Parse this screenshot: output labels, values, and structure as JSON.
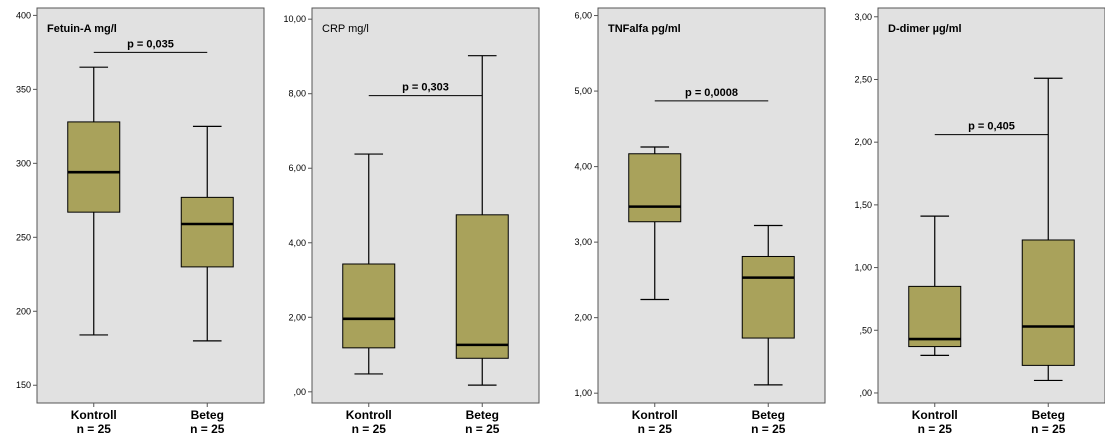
{
  "chart_data": [
    {
      "type": "boxplot",
      "title": "Fetuin-A mg/l",
      "title_bold": true,
      "ylim": [
        138,
        405
      ],
      "yticks": [
        150,
        200,
        250,
        300,
        350,
        400
      ],
      "ytick_labels": [
        "150",
        "200",
        "250",
        "300",
        "350",
        "400"
      ],
      "categories": [
        "Kontroll",
        "Beteg"
      ],
      "category_sublabels": [
        "n = 25",
        "n = 25"
      ],
      "boxes": [
        {
          "min": 184,
          "q1": 267,
          "median": 294,
          "q3": 328,
          "max": 365
        },
        {
          "min": 180,
          "q1": 230,
          "median": 259,
          "q3": 277,
          "max": 325
        }
      ],
      "annotation": {
        "text": "p = 0,035",
        "y": 375
      }
    },
    {
      "type": "boxplot",
      "title": "CRP mg/l",
      "title_bold": false,
      "ylim": [
        -0.3,
        10.3
      ],
      "yticks": [
        0,
        2,
        4,
        6,
        8,
        10
      ],
      "ytick_labels": [
        ",00",
        "2,00",
        "4,00",
        "6,00",
        "8,00",
        "10,00"
      ],
      "categories": [
        "Kontroll",
        "Beteg"
      ],
      "category_sublabels": [
        "n = 25",
        "n = 25"
      ],
      "boxes": [
        {
          "min": 0.48,
          "q1": 1.18,
          "median": 1.96,
          "q3": 3.43,
          "max": 6.38
        },
        {
          "min": 0.18,
          "q1": 0.9,
          "median": 1.26,
          "q3": 4.75,
          "max": 9.02
        }
      ],
      "annotation": {
        "text": "p = 0,303",
        "y": 7.95
      }
    },
    {
      "type": "boxplot",
      "title": "TNFalfa pg/ml",
      "title_bold": true,
      "ylim": [
        0.87,
        6.1
      ],
      "yticks": [
        1,
        2,
        3,
        4,
        5,
        6
      ],
      "ytick_labels": [
        "1,00",
        "2,00",
        "3,00",
        "4,00",
        "5,00",
        "6,00"
      ],
      "categories": [
        "Kontroll",
        "Beteg"
      ],
      "category_sublabels": [
        "n = 25",
        "n = 25"
      ],
      "boxes": [
        {
          "min": 2.24,
          "q1": 3.27,
          "median": 3.47,
          "q3": 4.17,
          "max": 4.26
        },
        {
          "min": 1.11,
          "q1": 1.73,
          "median": 2.53,
          "q3": 2.81,
          "max": 3.22
        }
      ],
      "annotation": {
        "text": "p = 0,0008",
        "y": 4.87
      }
    },
    {
      "type": "boxplot",
      "title": "D-dimer µg/ml",
      "title_bold": true,
      "ylim": [
        -0.08,
        3.07
      ],
      "yticks": [
        0,
        0.5,
        1,
        1.5,
        2,
        2.5,
        3
      ],
      "ytick_labels": [
        ",00",
        ",50",
        "1,00",
        "1,50",
        "2,00",
        "2,50",
        "3,00"
      ],
      "categories": [
        "Kontroll",
        "Beteg"
      ],
      "category_sublabels": [
        "n = 25",
        "n = 25"
      ],
      "boxes": [
        {
          "min": 0.3,
          "q1": 0.37,
          "median": 0.43,
          "q3": 0.85,
          "max": 1.41
        },
        {
          "min": 0.1,
          "q1": 0.22,
          "median": 0.53,
          "q3": 1.22,
          "max": 2.51
        }
      ],
      "annotation": {
        "text": "p = 0,405",
        "y": 2.06
      }
    }
  ],
  "colors": {
    "plot_background": "#e1e1e1",
    "box_fill": "#a9a25b",
    "line": "#000000",
    "frame": "#555555"
  }
}
